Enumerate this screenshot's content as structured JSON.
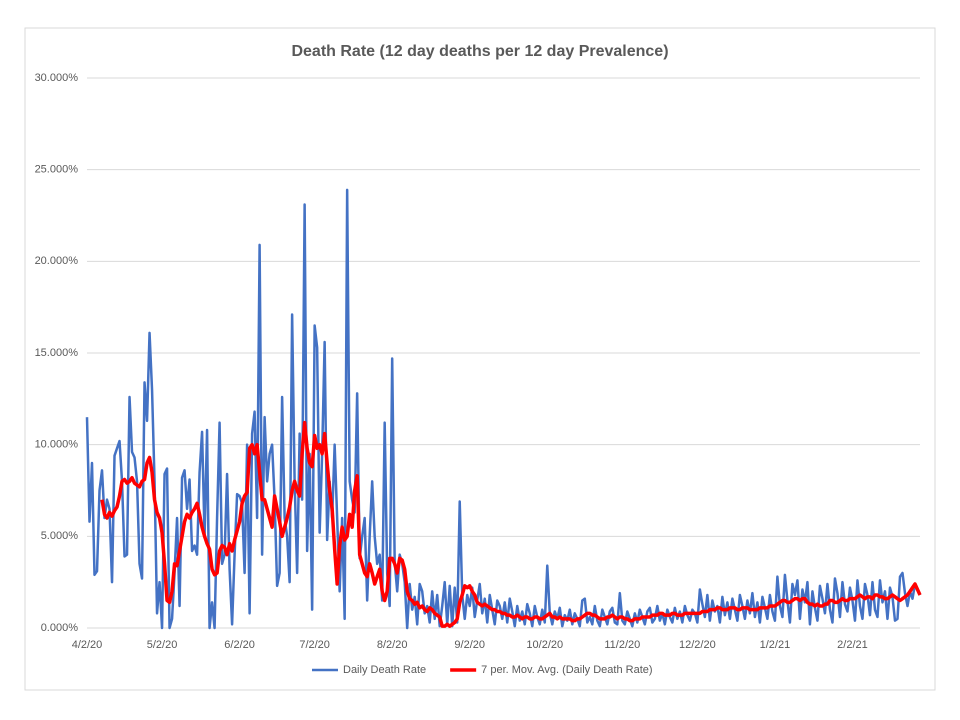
{
  "chart_data": {
    "type": "line",
    "title": "Death Rate (12 day deaths per 12 day Prevalence)",
    "categories": [
      "4/2/20",
      null,
      null,
      null,
      null,
      null,
      null,
      null,
      null,
      null,
      null,
      null,
      null,
      null,
      null,
      null,
      null,
      null,
      null,
      null,
      null,
      null,
      null,
      null,
      null,
      null,
      null,
      null,
      null,
      null,
      "5/2/20",
      null,
      null,
      null,
      null,
      null,
      null,
      null,
      null,
      null,
      null,
      null,
      null,
      null,
      null,
      null,
      null,
      null,
      null,
      null,
      null,
      null,
      null,
      null,
      null,
      null,
      null,
      null,
      null,
      null,
      null,
      "6/2/20",
      null,
      null,
      null,
      null,
      null,
      null,
      null,
      null,
      null,
      null,
      null,
      null,
      null,
      null,
      null,
      null,
      null,
      null,
      null,
      null,
      null,
      null,
      null,
      null,
      null,
      null,
      null,
      null,
      null,
      "7/2/20",
      null,
      null,
      null,
      null,
      null,
      null,
      null,
      null,
      null,
      null,
      null,
      null,
      null,
      null,
      null,
      null,
      null,
      null,
      null,
      null,
      null,
      null,
      null,
      null,
      null,
      null,
      null,
      null,
      null,
      null,
      "8/2/20",
      null,
      null,
      null,
      null,
      null,
      null,
      null,
      null,
      null,
      null,
      null,
      null,
      null,
      null,
      null,
      null,
      null,
      null,
      null,
      null,
      null,
      null,
      null,
      null,
      null,
      null,
      null,
      null,
      null,
      null,
      "9/2/20",
      null,
      null,
      null,
      null,
      null,
      null,
      null,
      null,
      null,
      null,
      null,
      null,
      null,
      null,
      null,
      null,
      null,
      null,
      null,
      null,
      null,
      null,
      null,
      null,
      null,
      null,
      null,
      null,
      null,
      "10/2/20",
      null,
      null,
      null,
      null,
      null,
      null,
      null,
      null,
      null,
      null,
      null,
      null,
      null,
      null,
      null,
      null,
      null,
      null,
      null,
      null,
      null,
      null,
      null,
      null,
      null,
      null,
      null,
      null,
      null,
      null,
      "11/2/20",
      null,
      null,
      null,
      null,
      null,
      null,
      null,
      null,
      null,
      null,
      null,
      null,
      null,
      null,
      null,
      null,
      null,
      null,
      null,
      null,
      null,
      null,
      null,
      null,
      null,
      null,
      null,
      null,
      null,
      "12/2/20",
      null,
      null,
      null,
      null,
      null,
      null,
      null,
      null,
      null,
      null,
      null,
      null,
      null,
      null,
      null,
      null,
      null,
      null,
      null,
      null,
      null,
      null,
      null,
      null,
      null,
      null,
      null,
      null,
      null,
      null,
      "1/2/21",
      null,
      null,
      null,
      null,
      null,
      null,
      null,
      null,
      null,
      null,
      null,
      null,
      null,
      null,
      null,
      null,
      null,
      null,
      null,
      null,
      null,
      null,
      null,
      null,
      null,
      null,
      null,
      null,
      null,
      null,
      "2/2/21",
      null,
      null,
      null,
      null,
      null,
      null,
      null,
      null,
      null,
      null,
      null,
      null,
      null,
      null,
      null,
      null,
      null,
      null,
      null,
      null,
      null,
      null,
      null,
      null,
      null,
      null,
      null
    ],
    "series": [
      {
        "name": "Daily Death Rate",
        "color": "#4472c4",
        "width": 2.5,
        "values": [
          11.5,
          5.8,
          9,
          2.9,
          3.1,
          7.5,
          8.6,
          6,
          7,
          6.5,
          2.5,
          9.4,
          9.8,
          10.2,
          8,
          3.9,
          4,
          12.6,
          9.6,
          9.3,
          8,
          3.5,
          2.7,
          13.4,
          11.3,
          16.1,
          13,
          8,
          0.8,
          2.5,
          0,
          8.4,
          8.7,
          0,
          0.5,
          3,
          6,
          1.2,
          8.2,
          8.6,
          6.5,
          8.1,
          4.2,
          4.5,
          4,
          8.5,
          10.7,
          5,
          10.8,
          0,
          1.4,
          0,
          6,
          11.2,
          3.5,
          4,
          8.4,
          3.2,
          0.2,
          4,
          7.3,
          7.2,
          6.8,
          3,
          10,
          0.8,
          10.6,
          11.8,
          6,
          20.9,
          4,
          11.5,
          8,
          9.5,
          10,
          7,
          2.3,
          3,
          12.6,
          6,
          5,
          2.5,
          17.1,
          8,
          3,
          10.6,
          7,
          23.1,
          4.2,
          9.5,
          1,
          16.5,
          15.3,
          5.2,
          9.5,
          15.6,
          4.8,
          8,
          6,
          10,
          6,
          2,
          6,
          0.5,
          23.9,
          8,
          7,
          6.3,
          12.8,
          3.8,
          5,
          6,
          1.5,
          5,
          8,
          5,
          3.5,
          4,
          1.5,
          11.2,
          3,
          1.2,
          14.7,
          3.6,
          2,
          4,
          3.5,
          2.5,
          0,
          2.4,
          1,
          1.7,
          0.2,
          2.4,
          2,
          0.8,
          1.2,
          0.3,
          2,
          0.5,
          1.8,
          0.1,
          1.2,
          2.5,
          0.2,
          2.3,
          0.1,
          2.2,
          0.3,
          6.9,
          1.8,
          0.5,
          1.8,
          1.2,
          2.2,
          0.6,
          1.5,
          2.4,
          0.8,
          1.6,
          0.3,
          1.8,
          1.0,
          0.2,
          1.5,
          1.2,
          0.5,
          1.4,
          0.3,
          1.6,
          0.9,
          0.1,
          1.2,
          0.4,
          0.9,
          0.2,
          1.3,
          0.8,
          0.1,
          1.2,
          0.6,
          0.2,
          1.0,
          0.3,
          3.4,
          0.8,
          0.2,
          0.9,
          0.5,
          1.1,
          0.1,
          0.7,
          0.4,
          1.0,
          0.2,
          0.8,
          0.5,
          0.1,
          1.5,
          1.6,
          0.3,
          0.6,
          0.2,
          1.2,
          0.4,
          0.1,
          1.0,
          0.6,
          0.2,
          0.9,
          1.1,
          0.3,
          0.2,
          1.9,
          0.4,
          0.2,
          0.9,
          0.5,
          0.1,
          0.8,
          0.3,
          1.0,
          0.6,
          0.2,
          0.9,
          1.1,
          0.3,
          0.5,
          1.2,
          0.4,
          0.8,
          0.2,
          1.0,
          0.6,
          0.3,
          1.1,
          0.5,
          0.9,
          0.3,
          1.2,
          0.7,
          0.4,
          1.0,
          0.8,
          0.3,
          2.1,
          1.3,
          0.6,
          1.8,
          0.4,
          1.5,
          0.9,
          1.2,
          0.3,
          1.7,
          0.7,
          1.4,
          0.5,
          1.6,
          1.0,
          0.4,
          1.8,
          1.2,
          0.5,
          1.5,
          0.8,
          1.9,
          0.6,
          1.4,
          0.3,
          1.7,
          1.1,
          0.5,
          1.8,
          0.9,
          0.4,
          2.8,
          1.2,
          0.6,
          2.9,
          1.5,
          0.3,
          2.4,
          1.8,
          2.6,
          0.5,
          2.1,
          1.4,
          2.5,
          0.2,
          2.0,
          1.1,
          0.4,
          2.3,
          1.6,
          0.8,
          2.4,
          1.0,
          0.3,
          2.7,
          1.9,
          0.6,
          2.5,
          1.3,
          0.9,
          2.2,
          1.5,
          0.4,
          2.6,
          1.2,
          0.5,
          2.4,
          1.8,
          0.7,
          2.5,
          1.0,
          0.6,
          2.6,
          1.4,
          2.0,
          0.5,
          2.2,
          1.7,
          0.4,
          0.5,
          2.8,
          3.0,
          1.9,
          1.2,
          2.0,
          1.6,
          2.4,
          2.1,
          1.8
        ]
      },
      {
        "name": "7 per. Mov. Avg. (Daily Death Rate)",
        "color": "#ff0000",
        "width": 3.5,
        "values": [
          null,
          null,
          null,
          null,
          null,
          null,
          7.0,
          6.2,
          6.0,
          6.3,
          6.1,
          6.4,
          6.6,
          7.2,
          8.0,
          8.1,
          7.9,
          8.0,
          8.2,
          7.9,
          7.8,
          7.7,
          8.0,
          8.1,
          9.0,
          9.3,
          8.5,
          7.0,
          6.3,
          6.0,
          5.2,
          3.5,
          1.5,
          1.4,
          2.0,
          3.5,
          3.4,
          4.2,
          5.0,
          5.8,
          6.2,
          6.0,
          6.3,
          6.5,
          6.8,
          6.2,
          5.5,
          5.0,
          4.6,
          4.3,
          3.2,
          2.9,
          3.0,
          4.2,
          4.5,
          4.4,
          4.0,
          4.6,
          4.2,
          4.8,
          5.3,
          5.8,
          6.8,
          7.2,
          7.4,
          9.8,
          10.0,
          9.5,
          10.0,
          8.5,
          7.0,
          7.0,
          6.5,
          6.0,
          5.5,
          7.2,
          6.5,
          5.8,
          5.0,
          5.5,
          6.0,
          6.6,
          7.5,
          8.0,
          7.5,
          7.2,
          9.5,
          11.2,
          9.8,
          9.0,
          8.8,
          10.5,
          9.8,
          10.0,
          9.5,
          10.6,
          9.0,
          7.5,
          6.5,
          4.3,
          2.4,
          4.5,
          5.5,
          4.8,
          5.0,
          6.2,
          5.5,
          7.5,
          8.3,
          4.0,
          3.5,
          3.0,
          2.8,
          3.5,
          3.0,
          2.4,
          2.8,
          3.2,
          2.0,
          1.5,
          2.0,
          3.8,
          3.8,
          3.5,
          3.0,
          3.8,
          3.7,
          3.2,
          2.0,
          1.6,
          1.5,
          1.3,
          1.4,
          1.1,
          1.2,
          1.0,
          0.9,
          1.1,
          1.0,
          0.8,
          0.7,
          0.6,
          0.1,
          0.1,
          0.2,
          0.1,
          0.2,
          0.3,
          0.5,
          1.4,
          1.8,
          2.3,
          2.2,
          2.3,
          2.0,
          1.8,
          1.4,
          1.3,
          1.2,
          1.3,
          1.2,
          1.1,
          1.0,
          1.0,
          0.9,
          0.9,
          0.8,
          0.8,
          0.7,
          0.7,
          0.6,
          0.6,
          0.7,
          0.6,
          0.5,
          0.6,
          0.6,
          0.5,
          0.5,
          0.6,
          0.6,
          0.5,
          0.5,
          0.6,
          0.7,
          0.8,
          0.6,
          0.6,
          0.5,
          0.6,
          0.5,
          0.5,
          0.5,
          0.5,
          0.4,
          0.4,
          0.5,
          0.5,
          0.6,
          0.7,
          0.8,
          0.8,
          0.7,
          0.7,
          0.6,
          0.5,
          0.5,
          0.5,
          0.6,
          0.6,
          0.7,
          0.6,
          0.5,
          0.6,
          0.6,
          0.5,
          0.5,
          0.4,
          0.4,
          0.5,
          0.5,
          0.5,
          0.6,
          0.6,
          0.6,
          0.6,
          0.7,
          0.7,
          0.7,
          0.8,
          0.8,
          0.7,
          0.7,
          0.7,
          0.8,
          0.8,
          0.7,
          0.7,
          0.7,
          0.8,
          0.8,
          0.8,
          0.8,
          0.8,
          0.8,
          0.8,
          0.9,
          0.9,
          0.9,
          1.0,
          1.0,
          1.0,
          1.1,
          1.1,
          1.0,
          1.0,
          1.0,
          1.1,
          1.1,
          1.1,
          1.0,
          1.0,
          1.1,
          1.1,
          1.1,
          1.0,
          1.0,
          1.0,
          1.0,
          1.1,
          1.1,
          1.1,
          1.1,
          1.2,
          1.2,
          1.2,
          1.3,
          1.4,
          1.5,
          1.5,
          1.4,
          1.4,
          1.5,
          1.6,
          1.6,
          1.5,
          1.6,
          1.6,
          1.4,
          1.3,
          1.3,
          1.2,
          1.3,
          1.2,
          1.2,
          1.3,
          1.3,
          1.5,
          1.5,
          1.4,
          1.4,
          1.5,
          1.6,
          1.5,
          1.5,
          1.6,
          1.6,
          1.6,
          1.7,
          1.8,
          1.7,
          1.6,
          1.7,
          1.7,
          1.6,
          1.8,
          1.8,
          1.7,
          1.7,
          1.6,
          1.6,
          1.7,
          1.8,
          1.7,
          1.6,
          1.5,
          1.6,
          1.7,
          1.8,
          2.0,
          2.2,
          2.4,
          2.1,
          1.8
        ]
      }
    ],
    "ylim": [
      0,
      30
    ],
    "yticks": [
      {
        "value": 0,
        "label": "0.000%"
      },
      {
        "value": 5,
        "label": "5.000%"
      },
      {
        "value": 10,
        "label": "10.000%"
      },
      {
        "value": 15,
        "label": "15.000%"
      },
      {
        "value": 20,
        "label": "20.000%"
      },
      {
        "value": 25,
        "label": "25.000%"
      },
      {
        "value": 30,
        "label": "30.000%"
      }
    ],
    "grid": true,
    "legend": "bottom"
  }
}
